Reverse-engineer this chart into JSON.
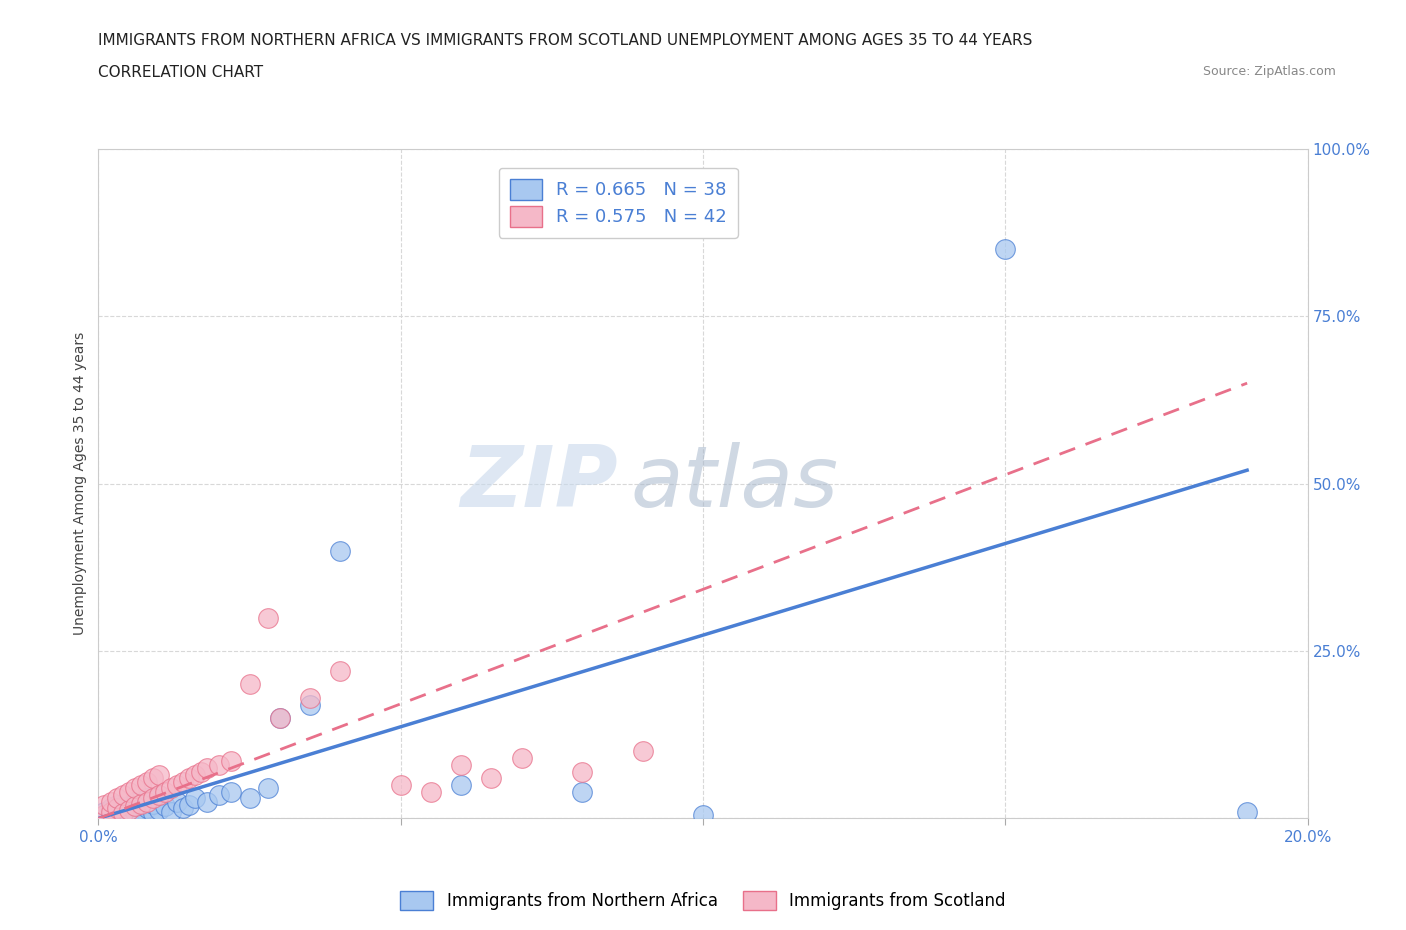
{
  "title_line1": "IMMIGRANTS FROM NORTHERN AFRICA VS IMMIGRANTS FROM SCOTLAND UNEMPLOYMENT AMONG AGES 35 TO 44 YEARS",
  "title_line2": "CORRELATION CHART",
  "source_text": "Source: ZipAtlas.com",
  "ylabel": "Unemployment Among Ages 35 to 44 years",
  "xlim": [
    0.0,
    0.2
  ],
  "ylim": [
    0.0,
    1.0
  ],
  "xticks": [
    0.0,
    0.05,
    0.1,
    0.15,
    0.2
  ],
  "yticks": [
    0.0,
    0.25,
    0.5,
    0.75,
    1.0
  ],
  "blue_R": 0.665,
  "blue_N": 38,
  "pink_R": 0.575,
  "pink_N": 42,
  "blue_color": "#a8c8f0",
  "pink_color": "#f5b8c8",
  "blue_line_color": "#4a7fd4",
  "pink_line_color": "#e8708a",
  "watermark_zip": "ZIP",
  "watermark_atlas": "atlas",
  "legend_label_blue": "Immigrants from Northern Africa",
  "legend_label_pink": "Immigrants from Scotland",
  "blue_scatter_x": [
    0.001,
    0.002,
    0.002,
    0.003,
    0.003,
    0.004,
    0.004,
    0.005,
    0.005,
    0.006,
    0.006,
    0.007,
    0.007,
    0.008,
    0.008,
    0.009,
    0.009,
    0.01,
    0.01,
    0.011,
    0.012,
    0.013,
    0.014,
    0.015,
    0.016,
    0.018,
    0.02,
    0.022,
    0.025,
    0.028,
    0.03,
    0.035,
    0.04,
    0.06,
    0.08,
    0.1,
    0.15,
    0.19
  ],
  "blue_scatter_y": [
    0.01,
    0.005,
    0.015,
    0.008,
    0.02,
    0.003,
    0.012,
    0.007,
    0.018,
    0.01,
    0.025,
    0.005,
    0.02,
    0.015,
    0.03,
    0.008,
    0.022,
    0.012,
    0.035,
    0.018,
    0.01,
    0.025,
    0.015,
    0.02,
    0.03,
    0.025,
    0.035,
    0.04,
    0.03,
    0.045,
    0.15,
    0.17,
    0.4,
    0.05,
    0.04,
    0.005,
    0.85,
    0.01
  ],
  "pink_scatter_x": [
    0.001,
    0.001,
    0.002,
    0.002,
    0.003,
    0.003,
    0.004,
    0.004,
    0.005,
    0.005,
    0.006,
    0.006,
    0.007,
    0.007,
    0.008,
    0.008,
    0.009,
    0.009,
    0.01,
    0.01,
    0.011,
    0.012,
    0.013,
    0.014,
    0.015,
    0.016,
    0.017,
    0.018,
    0.02,
    0.022,
    0.025,
    0.028,
    0.03,
    0.035,
    0.04,
    0.05,
    0.055,
    0.06,
    0.065,
    0.07,
    0.08,
    0.09
  ],
  "pink_scatter_y": [
    0.005,
    0.02,
    0.01,
    0.025,
    0.015,
    0.03,
    0.008,
    0.035,
    0.012,
    0.04,
    0.018,
    0.045,
    0.022,
    0.05,
    0.025,
    0.055,
    0.03,
    0.06,
    0.035,
    0.065,
    0.04,
    0.045,
    0.05,
    0.055,
    0.06,
    0.065,
    0.07,
    0.075,
    0.08,
    0.085,
    0.2,
    0.3,
    0.15,
    0.18,
    0.22,
    0.05,
    0.04,
    0.08,
    0.06,
    0.09,
    0.07,
    0.1
  ],
  "background_color": "#ffffff",
  "grid_color": "#d8d8d8",
  "title_fontsize": 11,
  "axis_fontsize": 10,
  "tick_fontsize": 11
}
